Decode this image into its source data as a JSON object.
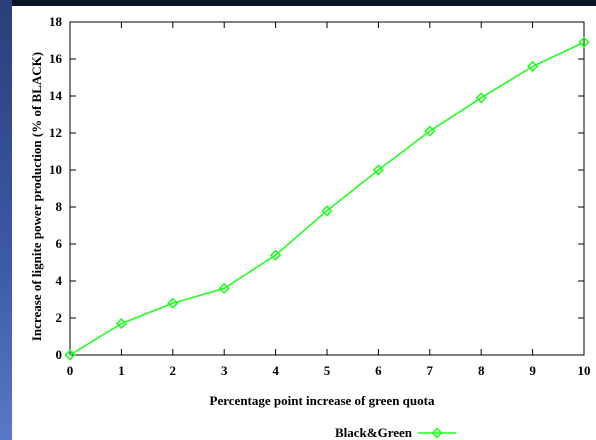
{
  "chart_data": {
    "type": "line",
    "title": "",
    "xlabel": "Percentage point increase of green quota",
    "ylabel": "Increase of lignite power production (% of BLACK)",
    "xlim": [
      0,
      10
    ],
    "ylim": [
      0,
      18
    ],
    "x_ticks": [
      0,
      1,
      2,
      3,
      4,
      5,
      6,
      7,
      8,
      9,
      10
    ],
    "y_ticks": [
      0,
      2,
      4,
      6,
      8,
      10,
      12,
      14,
      16,
      18
    ],
    "grid": false,
    "legend_position": "bottom-center",
    "series": [
      {
        "name": "Black&Green",
        "color": "#22ff22",
        "marker": "diamond",
        "x": [
          0,
          1,
          2,
          3,
          4,
          5,
          6,
          7,
          8,
          9,
          10
        ],
        "y": [
          0,
          1.7,
          2.8,
          3.6,
          5.4,
          7.8,
          10.0,
          12.1,
          13.9,
          15.6,
          16.9
        ]
      }
    ]
  }
}
